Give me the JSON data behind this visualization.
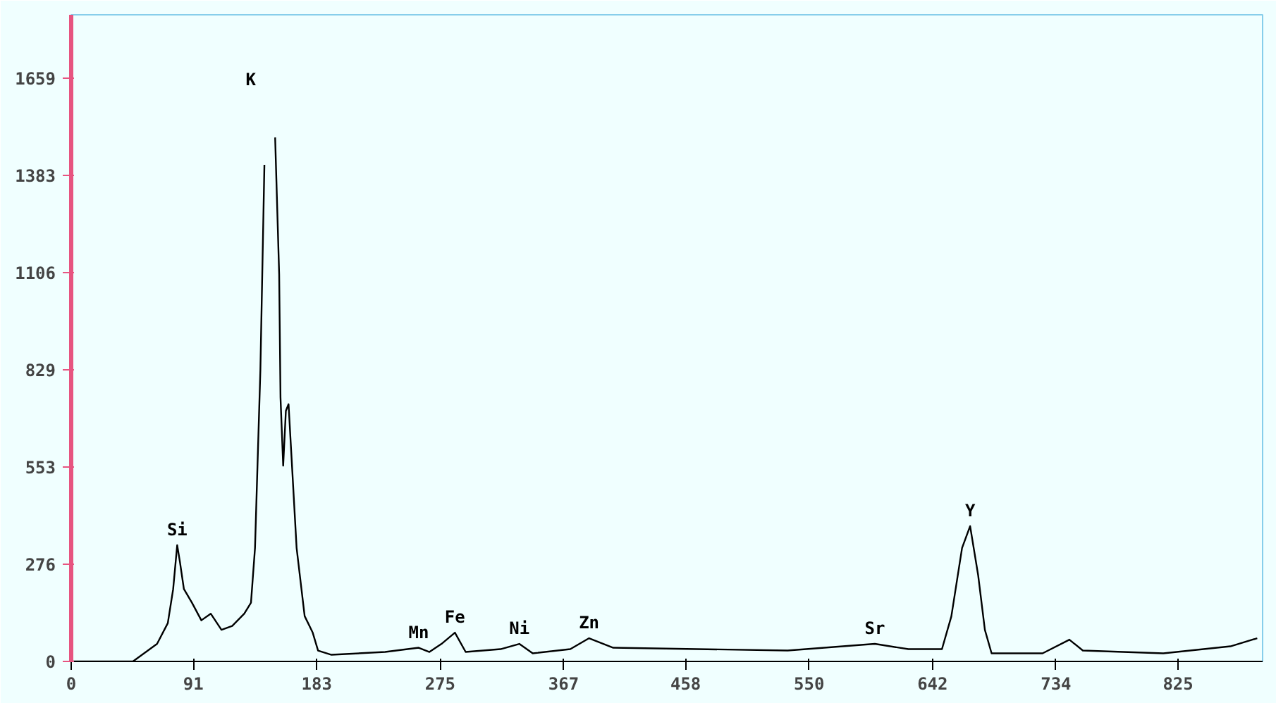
{
  "chart_data": {
    "type": "line",
    "x": [
      0,
      46,
      64,
      72,
      76,
      79,
      81,
      84,
      90,
      97,
      104,
      112,
      120,
      129,
      134,
      137,
      141,
      144,
      146,
      150,
      152,
      155,
      156,
      158,
      160,
      162,
      164,
      168,
      174,
      180,
      184,
      194,
      234,
      259,
      267,
      276,
      286,
      294,
      320,
      334,
      344,
      372,
      386,
      404,
      534,
      599,
      624,
      649,
      656,
      664,
      670,
      676,
      681,
      686,
      724,
      744,
      754,
      814,
      864,
      884
    ],
    "series": [
      {
        "color": "#000000",
        "values": [
          0,
          0,
          50,
          109,
          206,
          331,
          284,
          206,
          167,
          117,
          136,
          90,
          101,
          136,
          167,
          323,
          829,
          1413,
          null,
          null,
          1491,
          1102,
          751,
          557,
          713,
          732,
          596,
          323,
          129,
          82,
          31,
          19,
          27,
          39,
          27,
          50,
          82,
          27,
          35,
          50,
          23,
          35,
          66,
          39,
          31,
          50,
          35,
          35,
          128,
          323,
          385,
          245,
          90,
          23,
          23,
          62,
          31,
          23,
          43,
          66
        ]
      }
    ],
    "xlim": [
      0,
      888
    ],
    "ylim": [
      0,
      1840
    ],
    "xticks": [
      0,
      91,
      183,
      275,
      367,
      458,
      550,
      642,
      734,
      825
    ],
    "yticks": [
      0,
      276,
      553,
      829,
      1106,
      1383,
      1659
    ],
    "annotations": [
      {
        "text": "Si",
        "x": 79,
        "y": 331
      },
      "K",
      {
        "text": "Mn",
        "x": 259,
        "y": 39
      },
      {
        "text": "Fe",
        "x": 286,
        "y": 82
      },
      {
        "text": "Ni",
        "x": 334,
        "y": 50
      },
      {
        "text": "Zn",
        "x": 386,
        "y": 66
      },
      {
        "text": "Sr",
        "x": 599,
        "y": 50
      },
      {
        "text": "Y",
        "x": 670,
        "y": 385
      }
    ],
    "grid": false,
    "marker": "none",
    "line_style": "solid"
  }
}
